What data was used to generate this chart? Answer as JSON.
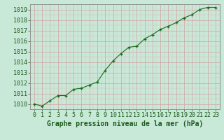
{
  "x": [
    0,
    1,
    2,
    3,
    4,
    5,
    6,
    7,
    8,
    9,
    10,
    11,
    12,
    13,
    14,
    15,
    16,
    17,
    18,
    19,
    20,
    21,
    22,
    23
  ],
  "y": [
    1010.0,
    1009.8,
    1010.3,
    1010.8,
    1010.8,
    1011.4,
    1011.5,
    1011.8,
    1012.1,
    1013.2,
    1014.1,
    1014.8,
    1015.4,
    1015.5,
    1016.2,
    1016.6,
    1017.1,
    1017.4,
    1017.75,
    1018.2,
    1018.5,
    1019.0,
    1019.2,
    1019.2
  ],
  "line_color": "#1a6b1a",
  "marker": "+",
  "marker_color": "#1a6b1a",
  "bg_color": "#cce8d4",
  "grid_major_color": "#e8b8b8",
  "grid_minor_color": "#e8d0d0",
  "xlabel": "Graphe pression niveau de la mer (hPa)",
  "xlabel_color": "#1a5c1a",
  "xlabel_fontsize": 7.0,
  "ytick_labels": [
    1010,
    1011,
    1012,
    1013,
    1014,
    1015,
    1016,
    1017,
    1018,
    1019
  ],
  "ylim": [
    1009.5,
    1019.5
  ],
  "xlim": [
    -0.5,
    23.5
  ],
  "tick_color": "#1a5c1a",
  "tick_fontsize": 6.0,
  "spine_color": "#888888"
}
